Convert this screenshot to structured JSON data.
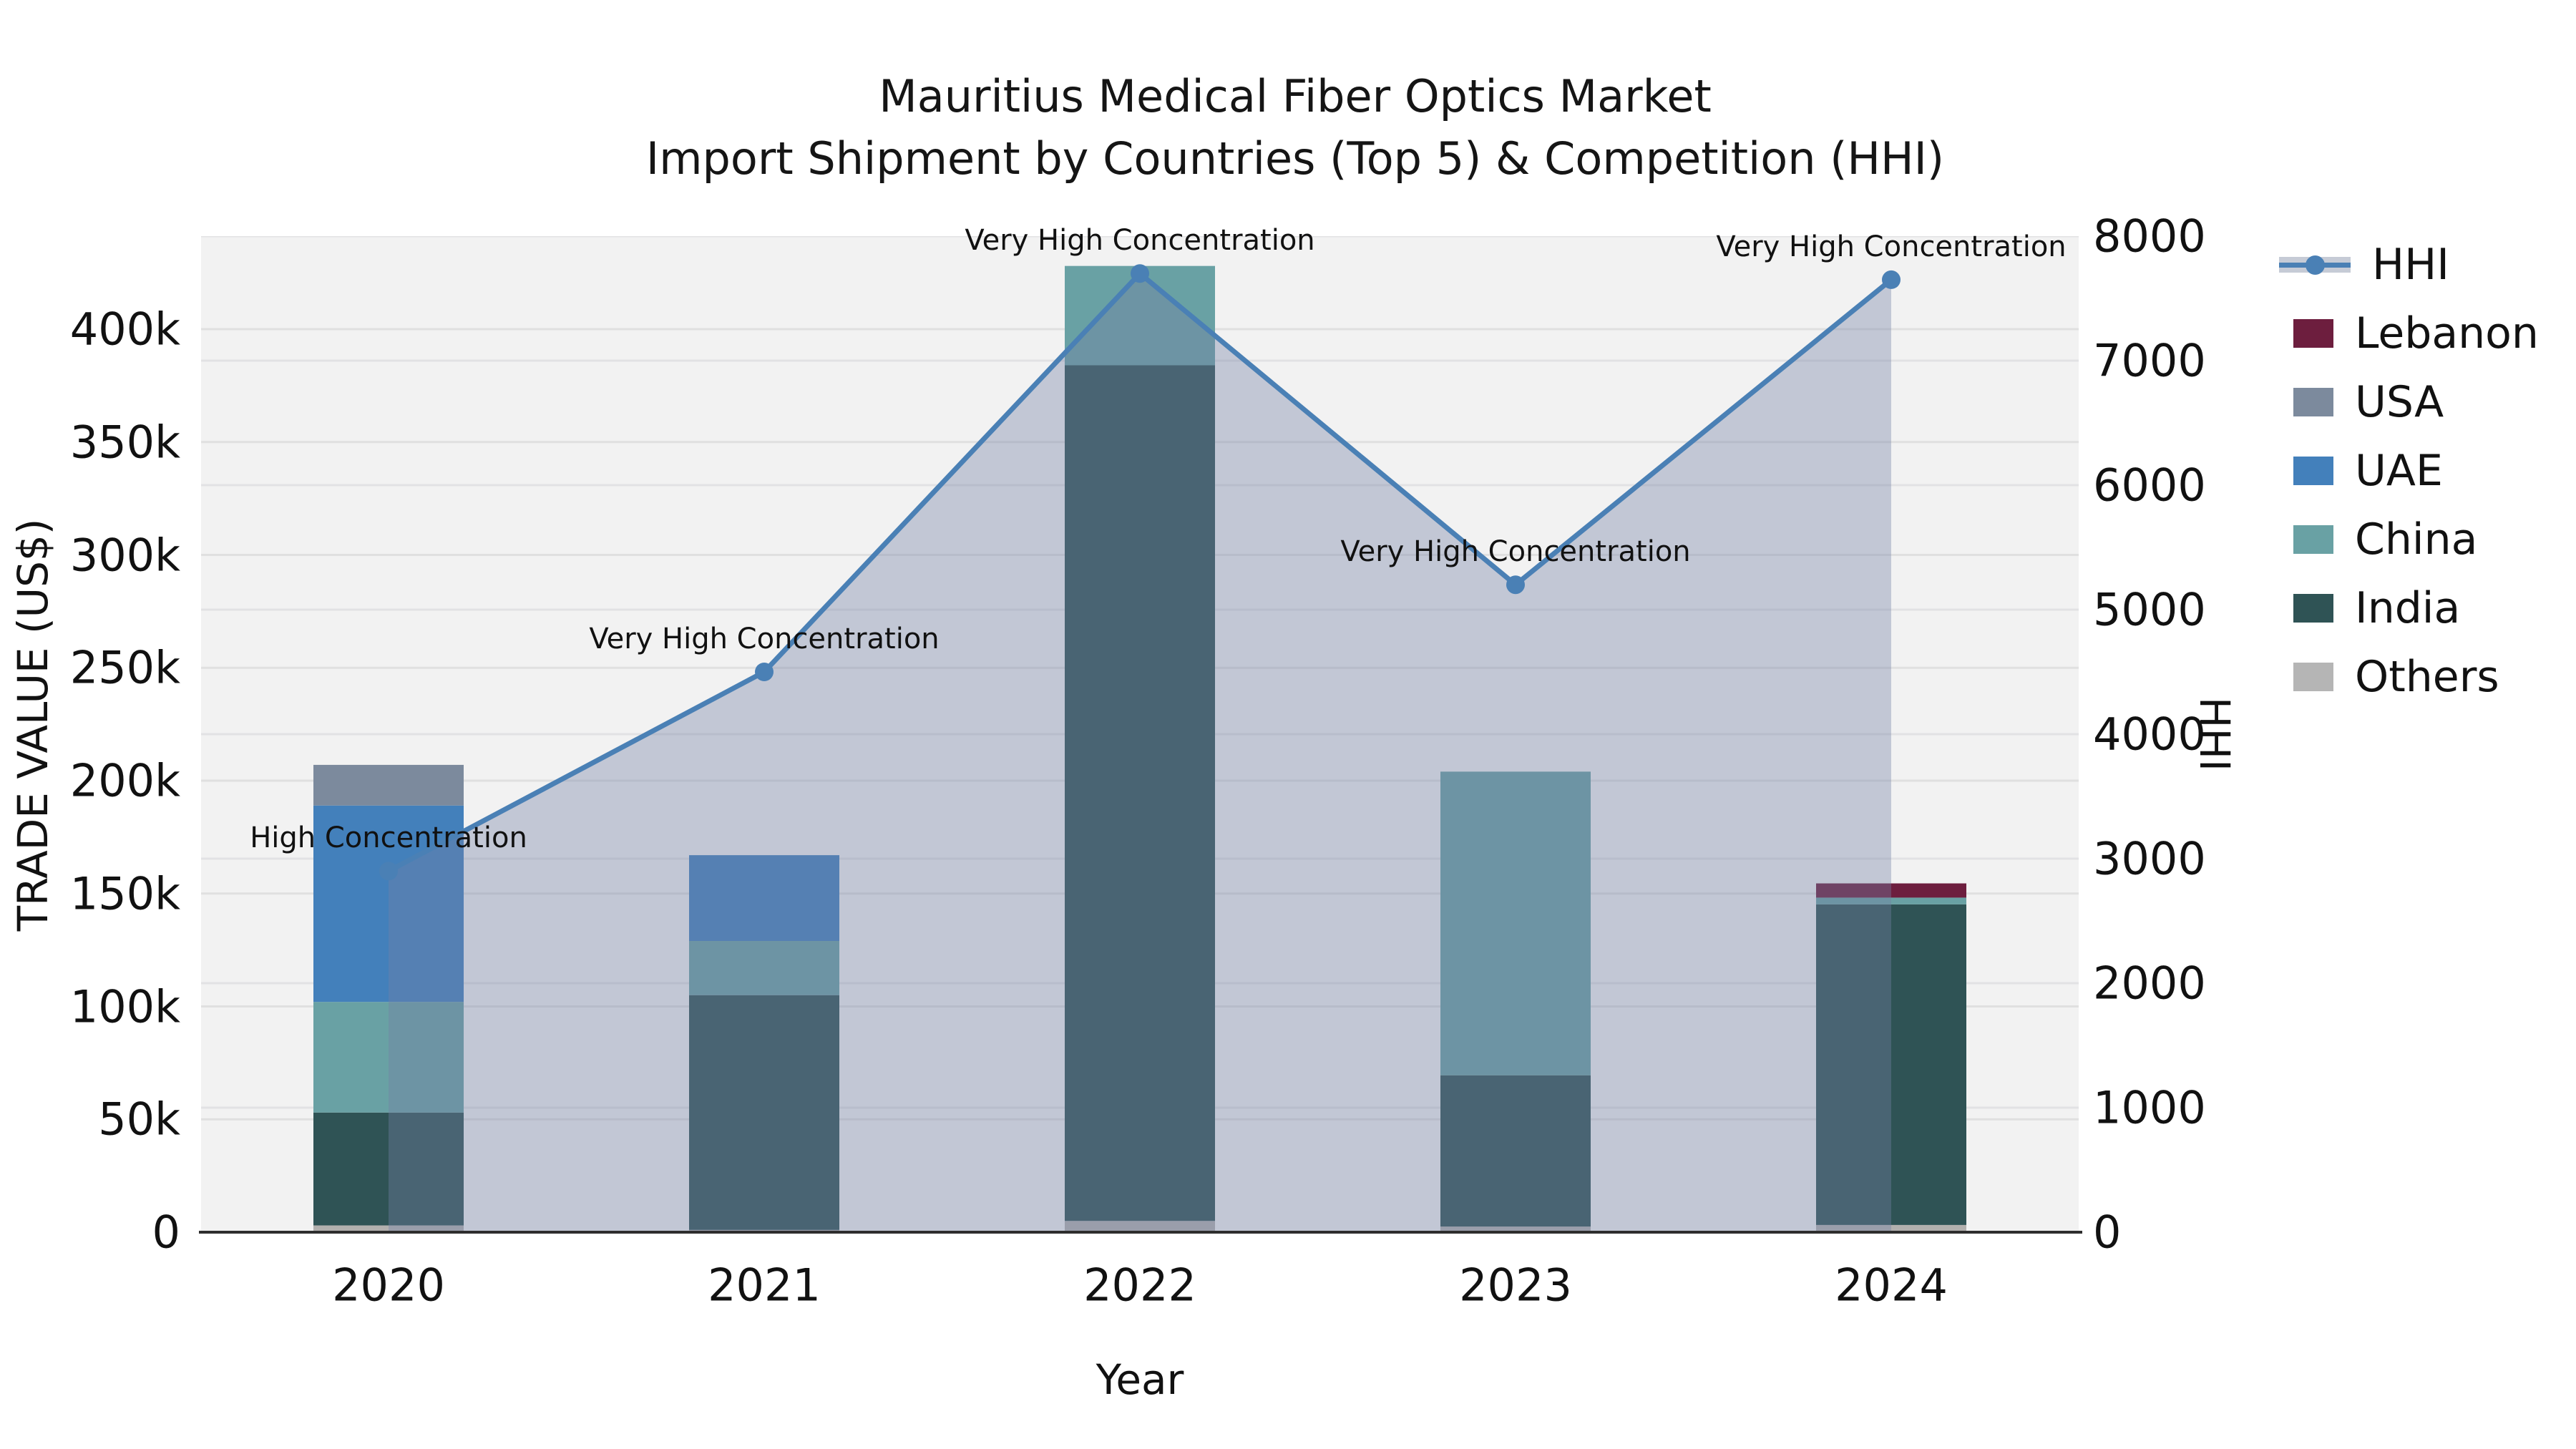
{
  "title": {
    "line1": "Mauritius Medical Fiber Optics Market",
    "line2": "Import Shipment by Countries (Top 5) & Competition (HHI)"
  },
  "axes": {
    "left": {
      "label": "TRADE VALUE (US$)",
      "ticks": [
        "0",
        "50k",
        "100k",
        "150k",
        "200k",
        "250k",
        "300k",
        "350k",
        "400k"
      ]
    },
    "right": {
      "label": "HHI",
      "ticks": [
        "0",
        "1000",
        "2000",
        "3000",
        "4000",
        "5000",
        "6000",
        "7000",
        "8000"
      ]
    },
    "x": {
      "label": "Year",
      "ticks": [
        "2020",
        "2021",
        "2022",
        "2023",
        "2024"
      ]
    }
  },
  "legend": {
    "items": [
      {
        "label": "HHI",
        "type": "line",
        "color": "#4a80b5"
      },
      {
        "label": "Lebanon",
        "type": "patch",
        "color": "#6d1e3e"
      },
      {
        "label": "USA",
        "type": "patch",
        "color": "#7c8a9d"
      },
      {
        "label": "UAE",
        "type": "patch",
        "color": "#4380bb"
      },
      {
        "label": "China",
        "type": "patch",
        "color": "#69a1a4"
      },
      {
        "label": "India",
        "type": "patch",
        "color": "#2f5355"
      },
      {
        "label": "Others",
        "type": "patch",
        "color": "#b5b5b5"
      }
    ]
  },
  "chart_data": {
    "type": "bar",
    "subtype": "stacked-bars-with-line",
    "title": "Mauritius Medical Fiber Optics Market Import Shipment by Countries (Top 5) & Competition (HHI)",
    "categories": [
      "2020",
      "2021",
      "2022",
      "2023",
      "2024"
    ],
    "xlabel": "Year",
    "ylabel_left": "TRADE VALUE (US$)",
    "ylabel_right": "HHI",
    "left_axis": {
      "min": 0,
      "max": 441000,
      "tick_step": 50000
    },
    "right_axis": {
      "min": 0,
      "max": 8000,
      "tick_step": 1000
    },
    "grid": true,
    "legend_position": "right",
    "series": [
      {
        "name": "Others",
        "color": "#b2b0ae",
        "values": [
          3000,
          1000,
          5000,
          2500,
          3200
        ]
      },
      {
        "name": "India",
        "color": "#2f5355",
        "values": [
          50000,
          104000,
          379000,
          67000,
          142000
        ]
      },
      {
        "name": "China",
        "color": "#69a1a4",
        "values": [
          49000,
          24000,
          44000,
          134500,
          3000
        ]
      },
      {
        "name": "UAE",
        "color": "#4380bb",
        "values": [
          87000,
          38000,
          0,
          0,
          0
        ]
      },
      {
        "name": "USA",
        "color": "#7c8a9d",
        "values": [
          18000,
          0,
          0,
          0,
          0
        ]
      },
      {
        "name": "Lebanon",
        "color": "#6d1e3e",
        "values": [
          0,
          0,
          0,
          0,
          6300
        ]
      }
    ],
    "line_series": {
      "name": "HHI",
      "color": "#4a80b5",
      "fill_color": "rgba(116,130,165,0.38)",
      "values": [
        2900,
        4500,
        7700,
        5200,
        7650
      ]
    },
    "annotations": [
      {
        "category": "2020",
        "text": "High Concentration"
      },
      {
        "category": "2021",
        "text": "Very High Concentration"
      },
      {
        "category": "2022",
        "text": "Very High Concentration"
      },
      {
        "category": "2023",
        "text": "Very High Concentration"
      },
      {
        "category": "2024",
        "text": "Very High Concentration"
      }
    ]
  }
}
